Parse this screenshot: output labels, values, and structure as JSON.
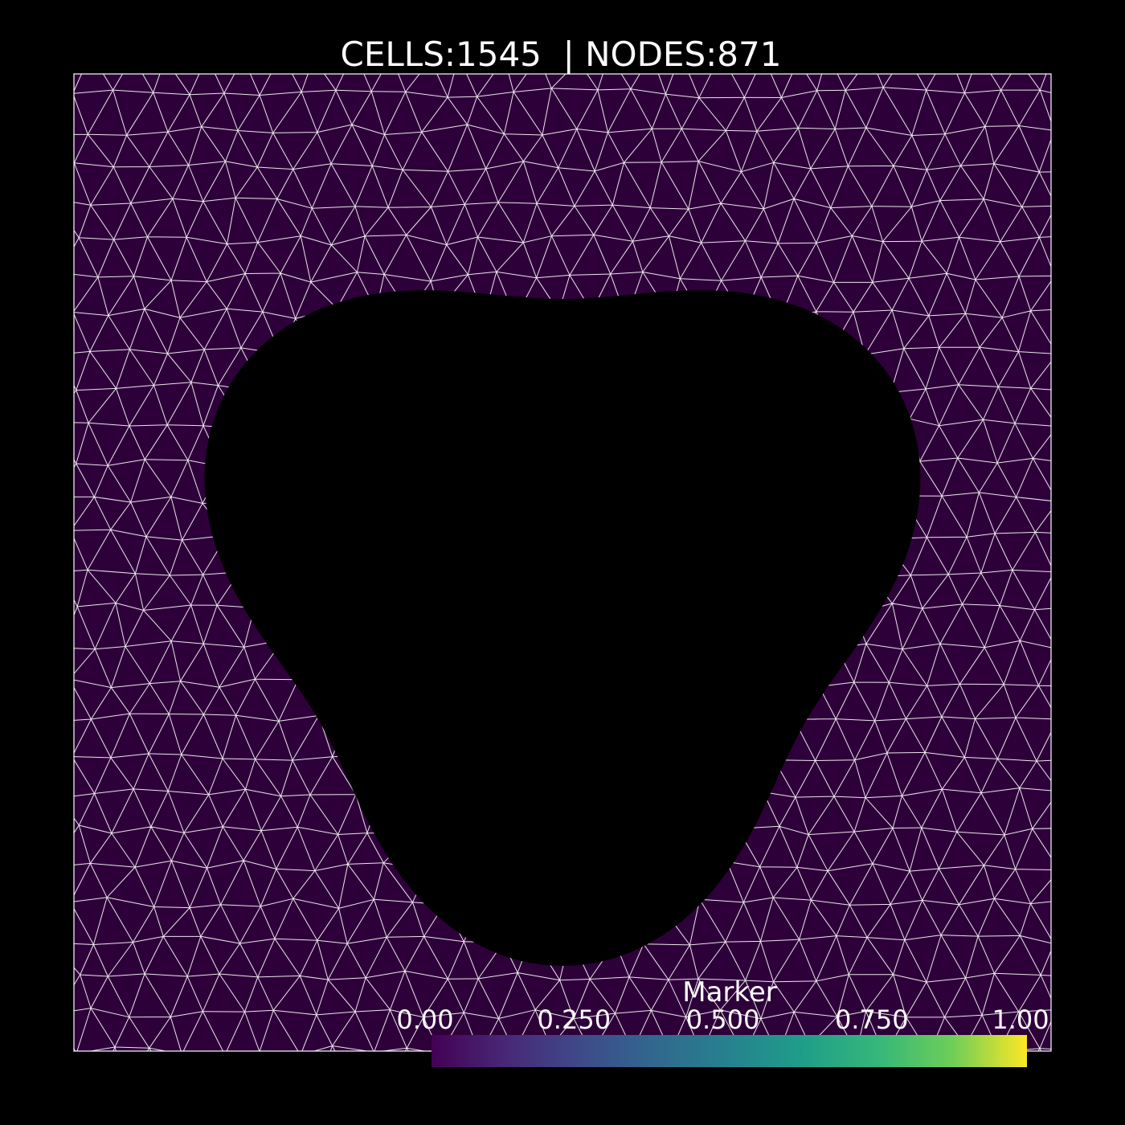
{
  "title": "CELLS:1545  | NODES:871",
  "colorbar": {
    "title": "Marker",
    "range": [
      0,
      1
    ],
    "ticks": [
      {
        "value": 0,
        "label": "0.00"
      },
      {
        "value": 0.25,
        "label": "0.250"
      },
      {
        "value": 0.5,
        "label": "0.500"
      },
      {
        "value": 0.75,
        "label": "0.750"
      },
      {
        "value": 1,
        "label": "1.00"
      }
    ]
  }
}
